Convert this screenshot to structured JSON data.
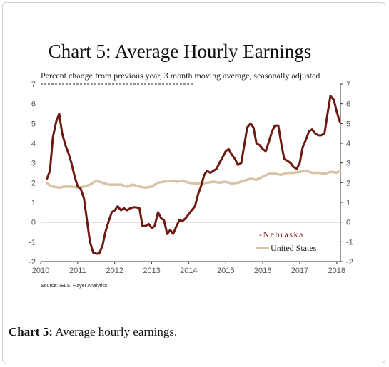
{
  "caption": {
    "label": "Chart 5:",
    "text": "Average hourly earnings."
  },
  "chart_data": {
    "type": "line",
    "title": "Chart 5: Average Hourly Earnings",
    "subtitle": "Percent change from previous year, 3 month moving average, seasonally adjusted",
    "source": "Source: IELS, Hayer Analytics.",
    "xlim": [
      2010,
      2018.1
    ],
    "ylim": [
      -2,
      7
    ],
    "x_ticks": [
      "2010",
      "2011",
      "2012",
      "2013",
      "2014",
      "2015",
      "2016",
      "2017",
      "2018"
    ],
    "y_ticks": [
      "-2",
      "-1",
      "0",
      "1",
      "2",
      "3",
      "4",
      "5",
      "6",
      "7"
    ],
    "legend_position": "bottom-right",
    "series": [
      {
        "name": "Nebraska",
        "legend_label": "-Nebraska",
        "color": "#6b1a12",
        "x": [
          2010.17,
          2010.25,
          2010.33,
          2010.42,
          2010.5,
          2010.58,
          2010.67,
          2010.75,
          2010.83,
          2010.92,
          2011.0,
          2011.08,
          2011.17,
          2011.25,
          2011.33,
          2011.42,
          2011.5,
          2011.58,
          2011.67,
          2011.75,
          2011.83,
          2011.92,
          2012.0,
          2012.08,
          2012.17,
          2012.25,
          2012.33,
          2012.42,
          2012.5,
          2012.58,
          2012.67,
          2012.75,
          2012.83,
          2012.92,
          2013.0,
          2013.08,
          2013.17,
          2013.25,
          2013.33,
          2013.42,
          2013.5,
          2013.58,
          2013.67,
          2013.75,
          2013.83,
          2013.92,
          2014.0,
          2014.08,
          2014.17,
          2014.25,
          2014.33,
          2014.42,
          2014.5,
          2014.58,
          2014.67,
          2014.75,
          2014.83,
          2014.92,
          2015.0,
          2015.08,
          2015.17,
          2015.25,
          2015.33,
          2015.42,
          2015.5,
          2015.58,
          2015.67,
          2015.75,
          2015.83,
          2015.92,
          2016.0,
          2016.08,
          2016.17,
          2016.25,
          2016.33,
          2016.42,
          2016.5,
          2016.58,
          2016.67,
          2016.75,
          2016.83,
          2016.92,
          2017.0,
          2017.08,
          2017.17,
          2017.25,
          2017.33,
          2017.42,
          2017.5,
          2017.58,
          2017.67,
          2017.75,
          2017.83,
          2017.92,
          2018.0,
          2018.08
        ],
        "values": [
          2.2,
          2.6,
          4.3,
          5.1,
          5.5,
          4.5,
          3.9,
          3.5,
          3.0,
          2.3,
          1.8,
          1.7,
          1.2,
          0.1,
          -1.0,
          -1.55,
          -1.6,
          -1.6,
          -1.2,
          -0.5,
          0.0,
          0.5,
          0.6,
          0.8,
          0.6,
          0.7,
          0.6,
          0.7,
          0.75,
          0.75,
          0.7,
          -0.2,
          -0.2,
          -0.1,
          -0.3,
          -0.2,
          0.5,
          0.2,
          0.1,
          -0.6,
          -0.4,
          -0.6,
          -0.2,
          0.1,
          0.05,
          0.2,
          0.4,
          0.6,
          0.8,
          1.4,
          1.8,
          2.4,
          2.6,
          2.5,
          2.6,
          2.7,
          3.0,
          3.3,
          3.6,
          3.7,
          3.4,
          3.2,
          2.9,
          3.0,
          3.9,
          4.8,
          5.0,
          4.8,
          4.0,
          3.9,
          3.7,
          3.6,
          4.1,
          4.6,
          4.9,
          4.9,
          4.0,
          3.2,
          3.1,
          3.0,
          2.8,
          2.7,
          3.0,
          3.8,
          4.2,
          4.6,
          4.7,
          4.5,
          4.4,
          4.4,
          4.5,
          5.5,
          6.4,
          6.2,
          5.6,
          5.1
        ]
      },
      {
        "name": "United States",
        "legend_label": "United States",
        "color": "#d7c3a6",
        "x": [
          2010.17,
          2010.25,
          2010.33,
          2010.5,
          2010.67,
          2010.83,
          2011.0,
          2011.17,
          2011.33,
          2011.5,
          2011.67,
          2011.83,
          2012.0,
          2012.17,
          2012.33,
          2012.5,
          2012.67,
          2012.83,
          2013.0,
          2013.17,
          2013.33,
          2013.5,
          2013.67,
          2013.83,
          2014.0,
          2014.17,
          2014.33,
          2014.5,
          2014.67,
          2014.83,
          2015.0,
          2015.17,
          2015.33,
          2015.5,
          2015.67,
          2015.83,
          2016.0,
          2016.17,
          2016.33,
          2016.5,
          2016.67,
          2016.83,
          2017.0,
          2017.17,
          2017.33,
          2017.5,
          2017.67,
          2017.83,
          2018.0,
          2018.08
        ],
        "values": [
          2.0,
          1.85,
          1.8,
          1.75,
          1.8,
          1.8,
          1.75,
          1.8,
          1.9,
          2.1,
          2.0,
          1.9,
          1.9,
          1.9,
          1.8,
          1.9,
          1.8,
          1.75,
          1.8,
          2.0,
          2.05,
          2.1,
          2.05,
          2.1,
          2.0,
          1.95,
          1.95,
          2.0,
          2.05,
          2.0,
          2.05,
          1.95,
          2.0,
          2.1,
          2.2,
          2.15,
          2.3,
          2.45,
          2.45,
          2.4,
          2.5,
          2.5,
          2.55,
          2.6,
          2.5,
          2.5,
          2.45,
          2.55,
          2.5,
          2.6
        ]
      }
    ]
  }
}
